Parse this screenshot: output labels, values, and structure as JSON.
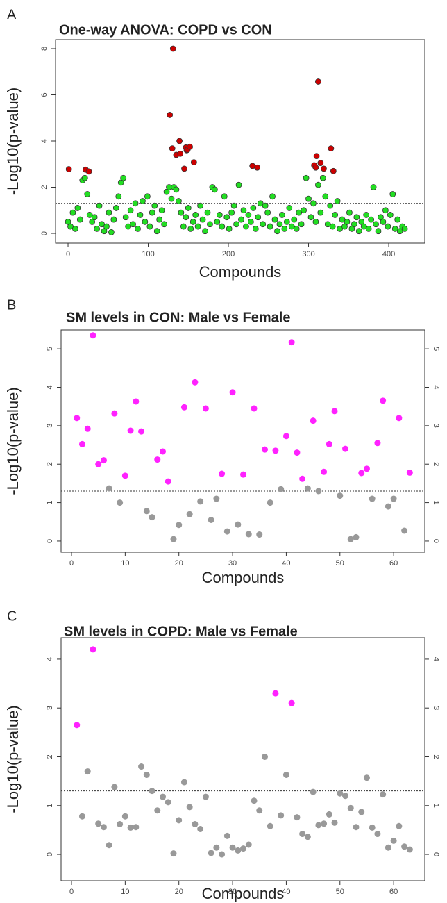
{
  "chart_data": [
    {
      "type": "scatter",
      "panel": "A",
      "title": "One-way ANOVA: COPD vs CON",
      "xlabel": "Compounds",
      "ylabel": "-Log10(p-value)",
      "xlim": [
        -15.6,
        445
      ],
      "ylim": [
        -0.42,
        8.39
      ],
      "xticks": [
        0,
        100,
        200,
        300,
        400
      ],
      "yticks": [
        0,
        2,
        4,
        6,
        8
      ],
      "hline": 1.3,
      "right_axis": false,
      "series": [
        {
          "color": "#cc0000",
          "x": [
            1,
            22,
            26,
            127,
            130,
            131,
            135,
            139,
            140,
            145,
            147,
            148,
            149,
            152,
            157,
            230,
            236,
            307,
            309,
            310,
            312,
            315,
            319,
            328,
            331
          ],
          "values": [
            2.78,
            2.76,
            2.68,
            5.13,
            3.68,
            8.0,
            3.4,
            4.0,
            3.45,
            2.8,
            3.72,
            3.6,
            3.62,
            3.75,
            3.08,
            2.92,
            2.85,
            2.95,
            2.85,
            3.35,
            6.57,
            3.05,
            2.8,
            3.68,
            2.7
          ]
        },
        {
          "color": "#22dd22",
          "x": [
            0,
            3,
            6,
            9,
            12,
            15,
            18,
            21,
            24,
            27,
            30,
            33,
            36,
            39,
            42,
            45,
            48,
            51,
            54,
            57,
            60,
            63,
            66,
            69,
            72,
            75,
            78,
            81,
            84,
            87,
            90,
            93,
            96,
            99,
            102,
            105,
            108,
            111,
            114,
            117,
            120,
            123,
            126,
            129,
            132,
            135,
            138,
            141,
            144,
            147,
            150,
            153,
            156,
            159,
            162,
            165,
            168,
            171,
            174,
            177,
            180,
            183,
            186,
            189,
            192,
            195,
            198,
            201,
            204,
            207,
            210,
            213,
            216,
            219,
            222,
            225,
            228,
            231,
            234,
            237,
            240,
            243,
            246,
            249,
            252,
            255,
            258,
            261,
            264,
            267,
            270,
            273,
            276,
            279,
            282,
            285,
            288,
            291,
            294,
            297,
            300,
            303,
            306,
            309,
            312,
            315,
            318,
            321,
            324,
            327,
            330,
            333,
            336,
            339,
            342,
            345,
            348,
            351,
            354,
            357,
            360,
            363,
            366,
            369,
            372,
            375,
            378,
            381,
            384,
            387,
            390,
            393,
            396,
            399,
            402,
            405,
            408,
            411,
            414,
            417,
            420
          ],
          "values": [
            0.5,
            0.3,
            0.9,
            0.2,
            1.1,
            0.6,
            2.3,
            2.4,
            1.7,
            0.8,
            0.5,
            0.7,
            0.2,
            1.2,
            0.4,
            0.1,
            0.3,
            0.9,
            0.05,
            0.6,
            1.1,
            1.6,
            2.2,
            2.4,
            0.7,
            0.3,
            1.0,
            0.4,
            1.3,
            0.2,
            0.8,
            1.4,
            0.5,
            1.6,
            0.3,
            0.9,
            1.2,
            0.1,
            0.6,
            1.0,
            0.4,
            1.8,
            2.0,
            1.5,
            2.0,
            1.9,
            1.4,
            0.9,
            0.3,
            0.7,
            1.1,
            0.2,
            0.5,
            0.8,
            0.3,
            1.2,
            0.6,
            0.1,
            0.9,
            0.4,
            2.0,
            1.9,
            0.5,
            0.8,
            0.3,
            1.6,
            0.7,
            0.2,
            0.9,
            1.2,
            0.4,
            2.1,
            0.6,
            1.0,
            0.3,
            0.8,
            0.5,
            1.1,
            0.2,
            0.7,
            1.3,
            0.4,
            1.2,
            0.9,
            0.3,
            1.6,
            0.6,
            0.1,
            0.4,
            0.8,
            0.2,
            0.5,
            1.1,
            0.3,
            0.6,
            0.2,
            0.9,
            0.4,
            1.0,
            2.4,
            1.5,
            0.7,
            1.3,
            0.5,
            2.1,
            0.9,
            2.4,
            1.6,
            0.4,
            1.2,
            0.3,
            0.8,
            1.4,
            0.2,
            0.6,
            0.3,
            0.5,
            0.9,
            0.2,
            0.4,
            0.7,
            0.1,
            0.5,
            0.3,
            0.8,
            0.2,
            0.6,
            2.0,
            0.4,
            0.1,
            0.7,
            0.5,
            1.0,
            0.3,
            0.8,
            1.7,
            0.2,
            0.6,
            0.1,
            0.3,
            0.2
          ]
        }
      ]
    },
    {
      "type": "scatter",
      "panel": "B",
      "title": "SM levels in CON: Male vs Female",
      "xlabel": "Compounds",
      "ylabel": "-Log10(p-value)",
      "xlim": [
        -1.94,
        65.8
      ],
      "ylim": [
        -0.29,
        5.49
      ],
      "xticks": [
        0,
        10,
        20,
        30,
        40,
        50,
        60
      ],
      "yticks": [
        0,
        1,
        2,
        3,
        4,
        5
      ],
      "hline": 1.3,
      "right_axis": true,
      "series": [
        {
          "color": "#ff22ff",
          "x": [
            1,
            2,
            3,
            4,
            5,
            6,
            8,
            10,
            11,
            12,
            13,
            16,
            17,
            18,
            21,
            23,
            25,
            28,
            30,
            32,
            34,
            36,
            38,
            40,
            41,
            42,
            43,
            45,
            47,
            48,
            49,
            51,
            54,
            55,
            57,
            58,
            61,
            63
          ],
          "values": [
            3.2,
            2.52,
            2.92,
            5.35,
            2.0,
            2.1,
            3.32,
            1.7,
            2.87,
            3.63,
            2.85,
            2.12,
            2.33,
            1.55,
            3.48,
            4.13,
            3.45,
            1.75,
            3.87,
            1.73,
            3.45,
            2.38,
            2.35,
            2.73,
            5.17,
            2.3,
            1.62,
            3.13,
            1.8,
            2.52,
            3.38,
            2.4,
            1.77,
            1.88,
            2.55,
            3.65,
            3.2,
            1.78
          ]
        },
        {
          "color": "#999999",
          "x": [
            7,
            9,
            14,
            15,
            19,
            20,
            22,
            24,
            26,
            27,
            29,
            31,
            33,
            35,
            37,
            39,
            44,
            46,
            50,
            52,
            53,
            56,
            59,
            60,
            62
          ],
          "values": [
            1.37,
            1.0,
            0.78,
            0.62,
            0.05,
            0.42,
            0.7,
            1.03,
            0.55,
            1.1,
            0.25,
            0.43,
            0.18,
            0.17,
            1.0,
            1.35,
            1.37,
            1.3,
            1.18,
            0.05,
            0.1,
            1.1,
            0.9,
            1.1,
            0.27
          ]
        }
      ]
    },
    {
      "type": "scatter",
      "panel": "C",
      "title": "SM levels in COPD: Male vs Female",
      "xlabel": "Compounds",
      "ylabel": "-Log10(p-value)",
      "xlim": [
        -1.94,
        65.8
      ],
      "ylim": [
        -0.54,
        4.44
      ],
      "xticks": [
        0,
        10,
        20,
        30,
        40,
        50,
        60
      ],
      "yticks": [
        0,
        1,
        2,
        3,
        4
      ],
      "hline": 1.3,
      "right_axis": true,
      "series": [
        {
          "color": "#ff22ff",
          "x": [
            1,
            4,
            38,
            41
          ],
          "values": [
            2.65,
            4.2,
            3.3,
            3.1
          ]
        },
        {
          "color": "#999999",
          "x": [
            2,
            3,
            5,
            6,
            7,
            8,
            9,
            10,
            11,
            12,
            13,
            14,
            15,
            16,
            17,
            18,
            19,
            20,
            21,
            22,
            23,
            24,
            25,
            26,
            27,
            28,
            29,
            30,
            31,
            32,
            33,
            34,
            35,
            36,
            37,
            39,
            40,
            42,
            43,
            44,
            45,
            46,
            47,
            48,
            49,
            50,
            51,
            52,
            53,
            54,
            55,
            56,
            57,
            58,
            59,
            60,
            61,
            62,
            63
          ],
          "values": [
            0.78,
            1.7,
            0.63,
            0.56,
            0.19,
            1.38,
            0.62,
            0.78,
            0.55,
            0.56,
            1.8,
            1.63,
            1.3,
            0.9,
            1.18,
            1.07,
            0.02,
            0.7,
            1.48,
            0.97,
            0.62,
            0.52,
            1.18,
            0.03,
            0.14,
            0.0,
            0.38,
            0.14,
            0.08,
            0.12,
            0.2,
            1.1,
            0.9,
            2.0,
            0.58,
            0.8,
            1.63,
            0.76,
            0.42,
            0.36,
            1.28,
            0.6,
            0.63,
            0.82,
            0.65,
            1.25,
            1.2,
            0.95,
            0.56,
            0.87,
            1.57,
            0.55,
            0.42,
            1.23,
            0.14,
            0.28,
            0.58,
            0.16,
            0.1
          ]
        }
      ]
    }
  ]
}
